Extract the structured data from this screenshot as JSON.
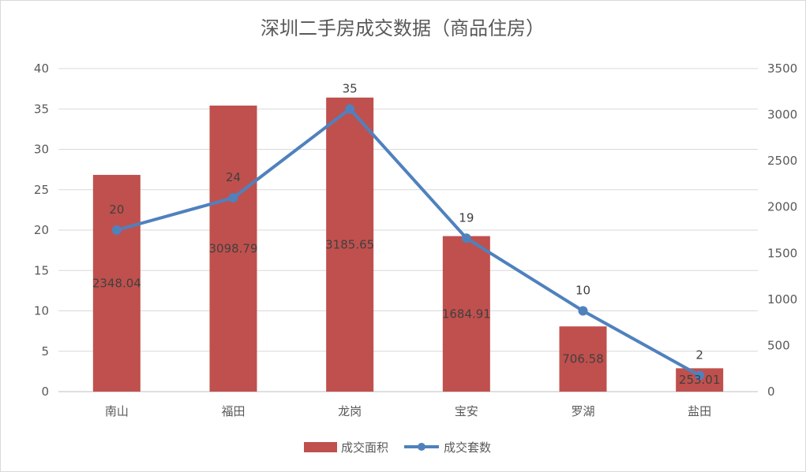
{
  "chart_data": {
    "type": "bar",
    "title": "深圳二手房成交数据（商品住房）",
    "categories": [
      "南山",
      "福田",
      "龙岗",
      "宝安",
      "罗湖",
      "盐田"
    ],
    "left_axis": {
      "ylim": [
        0,
        40
      ],
      "ticks": [
        0,
        5,
        10,
        15,
        20,
        25,
        30,
        35,
        40
      ]
    },
    "right_axis": {
      "ylim": [
        0,
        3500
      ],
      "ticks": [
        0,
        500,
        1000,
        1500,
        2000,
        2500,
        3000,
        3500
      ]
    },
    "grid": true,
    "legend_position": "bottom",
    "series": [
      {
        "name": "成交面积",
        "type": "bar",
        "axis": "right",
        "color": "#c0504d",
        "values": [
          2348.04,
          3098.79,
          3185.65,
          1684.91,
          706.58,
          253.01
        ],
        "labels": [
          "2348.04",
          "3098.79",
          "3185.65",
          "1684.91",
          "706.58",
          "253.01"
        ]
      },
      {
        "name": "成交套数",
        "type": "line",
        "axis": "left",
        "color": "#4f81bd",
        "values": [
          20,
          24,
          35,
          19,
          10,
          2
        ],
        "labels": [
          "20",
          "24",
          "35",
          "19",
          "10",
          "2"
        ]
      }
    ]
  }
}
